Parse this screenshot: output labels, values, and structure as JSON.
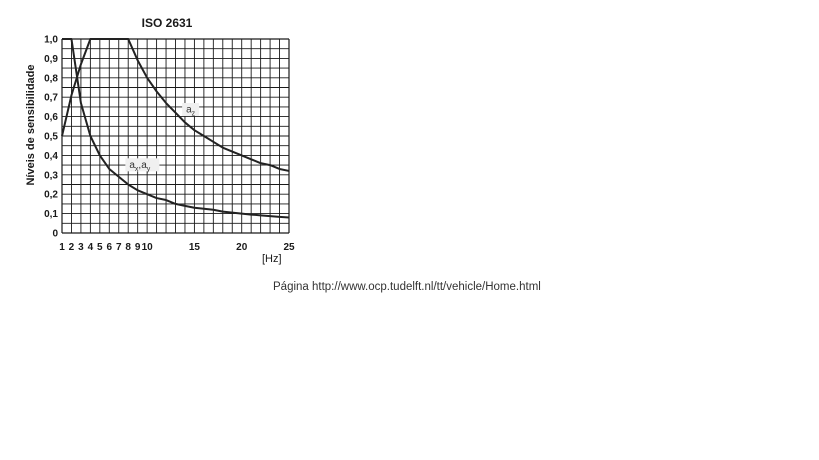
{
  "chart_data": {
    "type": "line",
    "title": "ISO 2631",
    "ylabel": "Níveis de sensibilidade",
    "xlabel_symbol": "",
    "xlabel_unit": "[Hz]",
    "xlim": [
      1,
      25
    ],
    "ylim": [
      0,
      1.0
    ],
    "x_ticks": [
      1,
      2,
      3,
      4,
      5,
      6,
      7,
      8,
      9,
      10,
      15,
      20,
      25
    ],
    "y_ticks": [
      "0",
      "0,1",
      "0,2",
      "0,3",
      "0,4",
      "0,5",
      "0,6",
      "0,7",
      "0,8",
      "0,9",
      "1,0"
    ],
    "grid": true,
    "series": [
      {
        "name": "a_z",
        "label_main": "a",
        "label_sub": "z",
        "x": [
          1,
          2,
          3,
          4,
          5,
          6,
          7,
          8,
          9,
          10,
          11,
          12,
          13,
          14,
          15,
          16,
          17,
          18,
          19,
          20,
          21,
          22,
          23,
          24,
          25
        ],
        "y": [
          0.5,
          0.71,
          0.87,
          1.0,
          1.0,
          1.0,
          1.0,
          1.0,
          0.89,
          0.8,
          0.73,
          0.67,
          0.62,
          0.57,
          0.53,
          0.5,
          0.47,
          0.44,
          0.42,
          0.4,
          0.38,
          0.36,
          0.35,
          0.33,
          0.32
        ]
      },
      {
        "name": "a_x, a_y",
        "label_parts": [
          "a",
          "x",
          ",",
          "a",
          "y"
        ],
        "x": [
          1,
          2,
          3,
          4,
          5,
          6,
          7,
          8,
          9,
          10,
          11,
          12,
          13,
          14,
          15,
          16,
          17,
          18,
          19,
          20,
          21,
          22,
          23,
          24,
          25
        ],
        "y": [
          1.0,
          1.0,
          0.67,
          0.5,
          0.4,
          0.33,
          0.29,
          0.25,
          0.22,
          0.2,
          0.18,
          0.17,
          0.15,
          0.14,
          0.13,
          0.125,
          0.12,
          0.11,
          0.105,
          0.1,
          0.095,
          0.091,
          0.087,
          0.083,
          0.08
        ]
      }
    ]
  },
  "source_text": "Página  http://www.ocp.tudelft.nl/tt/vehicle/Home.html",
  "colors": {
    "curve": "#222222",
    "grid": "#1a1a1a",
    "label_bg": "#f0f0f0"
  }
}
